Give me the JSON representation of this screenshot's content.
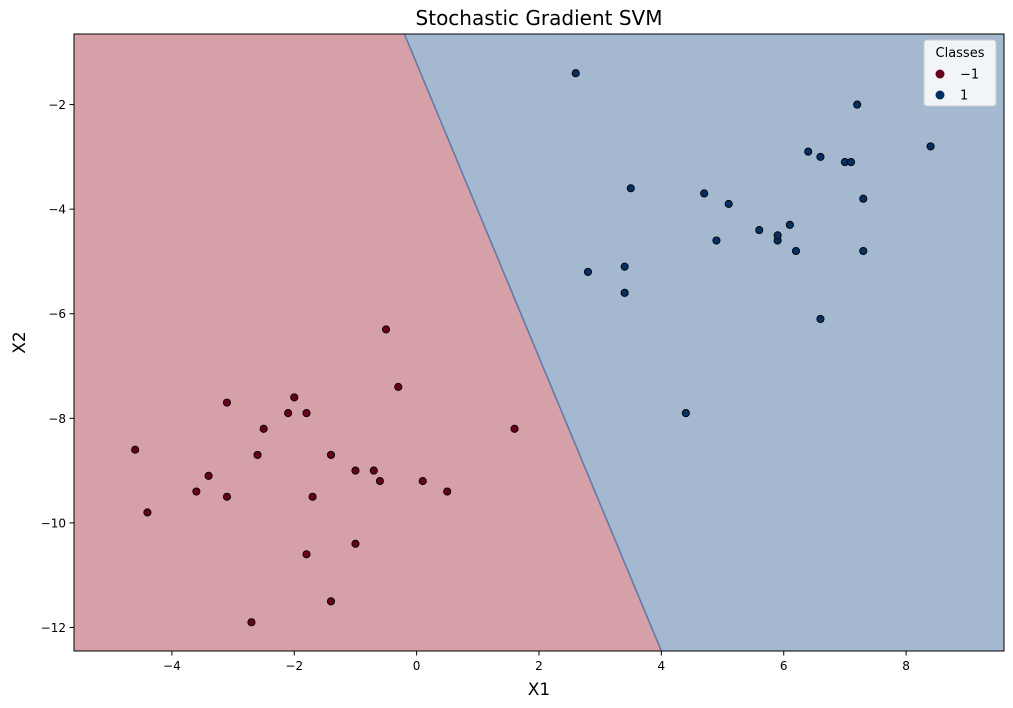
{
  "chart_data": {
    "type": "scatter",
    "title": "Stochastic Gradient SVM",
    "xlabel": "X1",
    "ylabel": "X2",
    "xlim": [
      -5.6,
      9.6
    ],
    "ylim": [
      -12.45,
      -0.65
    ],
    "xticks": [
      -4,
      -2,
      0,
      2,
      4,
      6,
      8
    ],
    "yticks": [
      -12,
      -10,
      -8,
      -6,
      -4,
      -2
    ],
    "xtick_labels": [
      "−4",
      "−2",
      "0",
      "2",
      "4",
      "6",
      "8"
    ],
    "ytick_labels": [
      "−12",
      "−10",
      "−8",
      "−6",
      "−4",
      "−2"
    ],
    "decision_boundary": {
      "x_at_top": -0.2,
      "x_at_bottom": 4.0
    },
    "regions": [
      {
        "class": "−1",
        "color": "#d5a0a8"
      },
      {
        "class": "1",
        "color": "#a4b8d0"
      }
    ],
    "legend": {
      "title": "Classes",
      "position": "top-right",
      "entries": [
        {
          "label": "−1",
          "color": "#67001f"
        },
        {
          "label": "1",
          "color": "#053061"
        }
      ]
    },
    "series": [
      {
        "name": "−1",
        "color": "#67001f",
        "points": [
          [
            -4.6,
            -8.6
          ],
          [
            -4.4,
            -9.8
          ],
          [
            -3.6,
            -9.4
          ],
          [
            -3.4,
            -9.1
          ],
          [
            -3.1,
            -9.5
          ],
          [
            -3.1,
            -7.7
          ],
          [
            -2.7,
            -11.9
          ],
          [
            -2.6,
            -8.7
          ],
          [
            -2.5,
            -8.2
          ],
          [
            -2.1,
            -7.9
          ],
          [
            -2.0,
            -7.6
          ],
          [
            -1.8,
            -7.9
          ],
          [
            -1.8,
            -10.6
          ],
          [
            -1.7,
            -9.5
          ],
          [
            -1.4,
            -8.7
          ],
          [
            -1.4,
            -11.5
          ],
          [
            -1.0,
            -9.0
          ],
          [
            -1.0,
            -10.4
          ],
          [
            -0.7,
            -9.0
          ],
          [
            -0.6,
            -9.2
          ],
          [
            -0.5,
            -6.3
          ],
          [
            -0.3,
            -7.4
          ],
          [
            0.1,
            -9.2
          ],
          [
            0.5,
            -9.4
          ],
          [
            1.6,
            -8.2
          ]
        ]
      },
      {
        "name": "1",
        "color": "#053061",
        "points": [
          [
            2.6,
            -1.4
          ],
          [
            2.8,
            -5.2
          ],
          [
            3.4,
            -5.6
          ],
          [
            3.4,
            -5.1
          ],
          [
            3.5,
            -3.6
          ],
          [
            4.4,
            -7.9
          ],
          [
            4.7,
            -3.7
          ],
          [
            4.9,
            -4.6
          ],
          [
            5.1,
            -3.9
          ],
          [
            5.6,
            -4.4
          ],
          [
            5.9,
            -4.6
          ],
          [
            5.9,
            -4.5
          ],
          [
            6.1,
            -4.3
          ],
          [
            6.2,
            -4.8
          ],
          [
            6.4,
            -2.9
          ],
          [
            6.6,
            -3.0
          ],
          [
            6.6,
            -6.1
          ],
          [
            7.0,
            -3.1
          ],
          [
            7.1,
            -3.1
          ],
          [
            7.2,
            -2.0
          ],
          [
            7.3,
            -3.8
          ],
          [
            7.3,
            -4.8
          ],
          [
            8.4,
            -2.8
          ]
        ]
      }
    ]
  }
}
